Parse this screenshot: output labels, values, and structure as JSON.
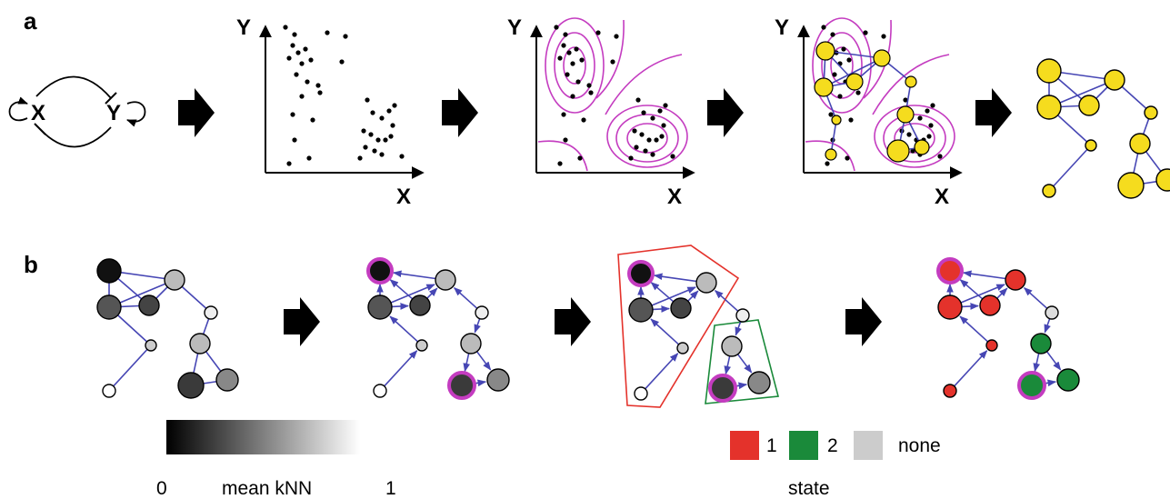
{
  "panels": {
    "a_label": "a",
    "b_label": "b"
  },
  "circuit": {
    "node_x": "X",
    "node_y": "Y"
  },
  "axes": {
    "x_label": "X",
    "y_label": "Y"
  },
  "legend_knn": {
    "min_label": "0",
    "title": "mean kNN",
    "max_label": "1"
  },
  "legend_state": {
    "title": "state",
    "items": [
      {
        "label": "1",
        "color": "#e4322b"
      },
      {
        "label": "2",
        "color": "#1a8a3a"
      },
      {
        "label": "none",
        "color": "#cccccc"
      }
    ]
  },
  "colors": {
    "edge": "#4646b4",
    "contour": "#c43cc0",
    "node_yellow": "#f5dc1e",
    "highlight_ring": "#c43cc0",
    "arrow": "#000000"
  }
}
